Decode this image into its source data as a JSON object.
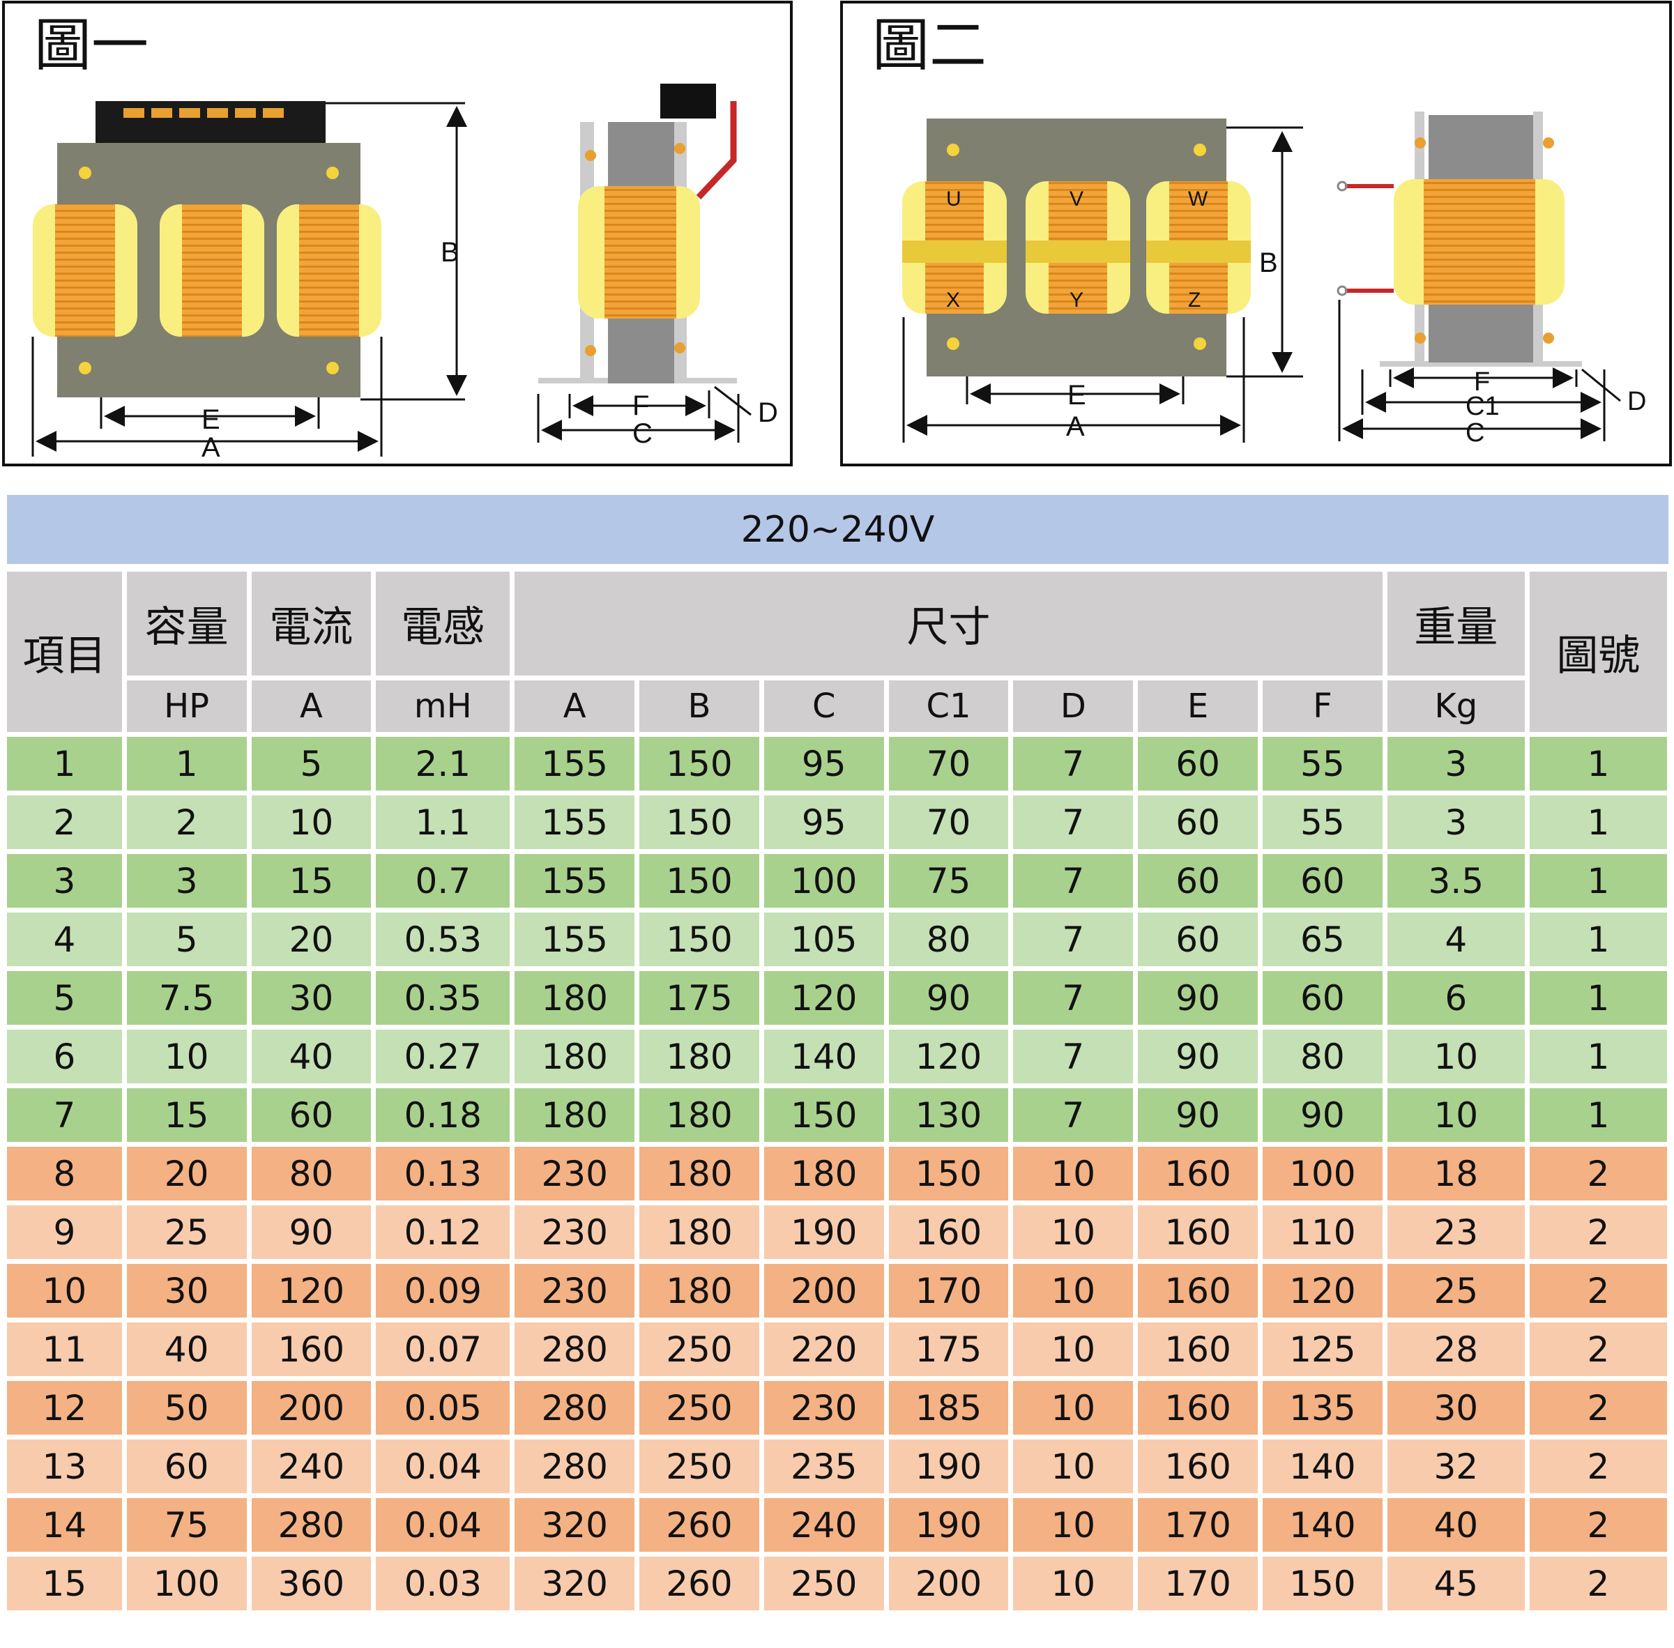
{
  "figures": {
    "fig1": {
      "title": "圖一",
      "labels": {
        "A": "A",
        "B": "B",
        "C": "C",
        "D": "D",
        "E": "E",
        "F": "F"
      }
    },
    "fig2": {
      "title": "圖二",
      "labels": {
        "A": "A",
        "B": "B",
        "C": "C",
        "C1": "C1",
        "D": "D",
        "E": "E",
        "F": "F"
      },
      "coil_labels": {
        "U": "U",
        "V": "V",
        "W": "W",
        "X": "X",
        "Y": "Y",
        "Z": "Z"
      }
    }
  },
  "banner": "220~240V",
  "table": {
    "headers": {
      "item": "項目",
      "capacity": "容量",
      "current": "電流",
      "inductance": "電感",
      "dimensions": "尺寸",
      "weight": "重量",
      "figure_no": "圖號"
    },
    "units": [
      "HP",
      "A",
      "mH",
      "A",
      "B",
      "C",
      "C1",
      "D",
      "E",
      "F",
      "Kg"
    ],
    "rows": [
      [
        "1",
        "1",
        "5",
        "2.1",
        "155",
        "150",
        "95",
        "70",
        "7",
        "60",
        "55",
        "3",
        "1"
      ],
      [
        "2",
        "2",
        "10",
        "1.1",
        "155",
        "150",
        "95",
        "70",
        "7",
        "60",
        "55",
        "3",
        "1"
      ],
      [
        "3",
        "3",
        "15",
        "0.7",
        "155",
        "150",
        "100",
        "75",
        "7",
        "60",
        "60",
        "3.5",
        "1"
      ],
      [
        "4",
        "5",
        "20",
        "0.53",
        "155",
        "150",
        "105",
        "80",
        "7",
        "60",
        "65",
        "4",
        "1"
      ],
      [
        "5",
        "7.5",
        "30",
        "0.35",
        "180",
        "175",
        "120",
        "90",
        "7",
        "90",
        "60",
        "6",
        "1"
      ],
      [
        "6",
        "10",
        "40",
        "0.27",
        "180",
        "180",
        "140",
        "120",
        "7",
        "90",
        "80",
        "10",
        "1"
      ],
      [
        "7",
        "15",
        "60",
        "0.18",
        "180",
        "180",
        "150",
        "130",
        "7",
        "90",
        "90",
        "10",
        "1"
      ],
      [
        "8",
        "20",
        "80",
        "0.13",
        "230",
        "180",
        "180",
        "150",
        "10",
        "160",
        "100",
        "18",
        "2"
      ],
      [
        "9",
        "25",
        "90",
        "0.12",
        "230",
        "180",
        "190",
        "160",
        "10",
        "160",
        "110",
        "23",
        "2"
      ],
      [
        "10",
        "30",
        "120",
        "0.09",
        "230",
        "180",
        "200",
        "170",
        "10",
        "160",
        "120",
        "25",
        "2"
      ],
      [
        "11",
        "40",
        "160",
        "0.07",
        "280",
        "250",
        "220",
        "175",
        "10",
        "160",
        "125",
        "28",
        "2"
      ],
      [
        "12",
        "50",
        "200",
        "0.05",
        "280",
        "250",
        "230",
        "185",
        "10",
        "160",
        "135",
        "30",
        "2"
      ],
      [
        "13",
        "60",
        "240",
        "0.04",
        "280",
        "250",
        "235",
        "190",
        "10",
        "160",
        "140",
        "32",
        "2"
      ],
      [
        "14",
        "75",
        "280",
        "0.04",
        "320",
        "260",
        "240",
        "190",
        "10",
        "170",
        "140",
        "40",
        "2"
      ],
      [
        "15",
        "100",
        "360",
        "0.03",
        "320",
        "260",
        "250",
        "200",
        "10",
        "170",
        "150",
        "45",
        "2"
      ]
    ]
  },
  "colors": {
    "green_dark": "#a9d18e",
    "green_light": "#c5e0b4",
    "orange_dark": "#f4b183",
    "orange_light": "#f8cbad",
    "header_gray": "#d0cece",
    "banner_blue": "#b4c7e7",
    "core_gray": "#7f8070",
    "coil_orange": "#f0a030",
    "coil_yellow": "#f8ef80"
  }
}
